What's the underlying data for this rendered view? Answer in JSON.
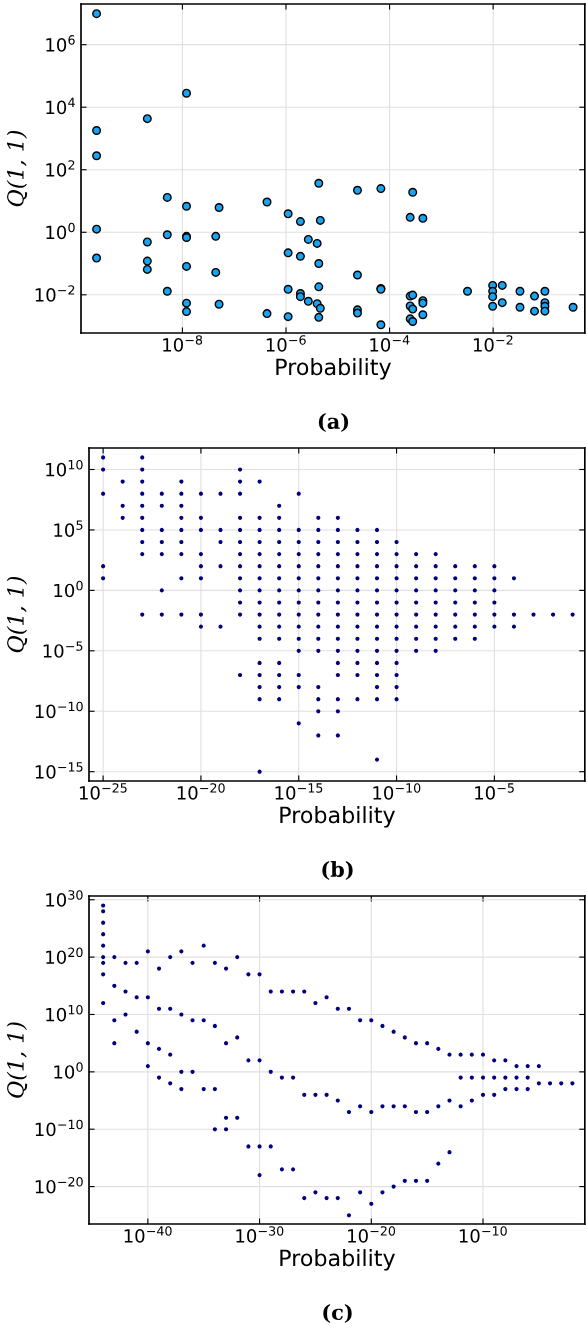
{
  "chart_data": [
    {
      "type": "scatter",
      "xlabel": "Probability",
      "ylabel": "Q(1, 1)",
      "annotations": [
        "(a)"
      ],
      "log": "xy",
      "grid": true,
      "marker": "circle",
      "xlim": [
        1.1e-10,
        0.59
      ],
      "ylim": [
        0.0006,
        20000000.0
      ],
      "xticks": [
        {
          "value": 1e-08,
          "label": "10$^{−8}$"
        },
        {
          "value": 1e-06,
          "label": "10$^{−6}$"
        },
        {
          "value": 0.0001,
          "label": "10$^{−4}$"
        },
        {
          "value": 0.01,
          "label": "10$^{−2}$"
        }
      ],
      "yticks": [
        {
          "value": 0.01,
          "label": "10$^{−2}$"
        },
        {
          "value": 1,
          "label": "10$^{0}$"
        },
        {
          "value": 100,
          "label": "10$^{2}$"
        },
        {
          "value": 10000.0,
          "label": "10$^{4}$"
        },
        {
          "value": 1000000.0,
          "label": "10$^{6}$"
        }
      ],
      "series": [
        {
          "color": "#1aa3f0",
          "x": [
            2.2e-10,
            2.2e-10,
            2.2e-10,
            2.2e-10,
            2.2e-10,
            2.1e-09,
            2.1e-09,
            2.1e-09,
            2.1e-09,
            5.1e-09,
            5.1e-09,
            5.1e-09,
            1.2e-08,
            1.2e-08,
            1.2e-08,
            1.2e-08,
            1.2e-08,
            1.2e-08,
            1.2e-08,
            4.4e-08,
            4.4e-08,
            5.1e-08,
            5.1e-08,
            4.3e-07,
            4.3e-07,
            1.1e-06,
            1.1e-06,
            1.1e-06,
            1.1e-06,
            1.9e-06,
            1.9e-06,
            1.9e-06,
            1.9e-06,
            2.7e-06,
            2.7e-06,
            4e-06,
            4e-06,
            4.3e-06,
            4.3e-06,
            4.3e-06,
            4.3e-06,
            4.6e-06,
            4.6e-06,
            2.4e-05,
            2.4e-05,
            2.4e-05,
            2.4e-05,
            6.8e-05,
            6.8e-05,
            6.8e-05,
            6.8e-05,
            0.00025,
            0.00025,
            0.00025,
            0.00025,
            0.00028,
            0.00028,
            0.00028,
            0.00028,
            0.00044,
            0.00044,
            0.00044,
            0.00044,
            0.0032,
            0.0098,
            0.0098,
            0.0098,
            0.0098,
            0.015,
            0.015,
            0.033,
            0.033,
            0.063,
            0.063,
            0.1,
            0.1,
            0.1,
            0.1,
            0.35
          ],
          "values": [
            9800000.0,
            1800,
            280,
            1.26,
            0.15,
            4300,
            0.49,
            0.12,
            0.065,
            13,
            0.83,
            0.013,
            28000.0,
            6.8,
            0.74,
            0.68,
            0.081,
            0.0054,
            0.0029,
            0.74,
            0.052,
            6.2,
            0.005,
            9.3,
            0.0025,
            3.9,
            0.22,
            0.015,
            0.002,
            2.2,
            0.17,
            0.011,
            0.0087,
            0.59,
            0.0062,
            0.44,
            0.0052,
            37,
            0.1,
            0.018,
            0.0019,
            2.4,
            0.0037,
            22,
            0.043,
            0.0033,
            0.0026,
            25,
            0.016,
            0.015,
            0.0011,
            3.0,
            0.0091,
            0.0044,
            0.0017,
            19,
            0.0098,
            0.0035,
            0.0014,
            2.8,
            0.0065,
            0.0054,
            0.0023,
            0.013,
            0.02,
            0.013,
            0.0087,
            0.0043,
            0.02,
            0.0056,
            0.013,
            0.004,
            0.0091,
            0.003,
            0.013,
            0.0056,
            0.0043,
            0.003,
            0.004
          ]
        }
      ]
    },
    {
      "type": "scatter",
      "xlabel": "Probability",
      "ylabel": "Q(1, 1)",
      "annotations": [
        "(b)"
      ],
      "log": "xy",
      "grid": true,
      "marker": "circle",
      "xlim": [
        1.9e-26,
        0.42
      ],
      "ylim": [
        1.7e-16,
        600000000000.0
      ],
      "xticks": [
        {
          "value": 1e-25,
          "label": "10$^{−25}$"
        },
        {
          "value": 1e-20,
          "label": "10$^{−20}$"
        },
        {
          "value": 1e-15,
          "label": "10$^{−15}$"
        },
        {
          "value": 1e-10,
          "label": "10$^{−10}$"
        },
        {
          "value": 1e-05,
          "label": "10$^{−5}$"
        }
      ],
      "yticks": [
        {
          "value": 1e-15,
          "label": "10$^{−15}$"
        },
        {
          "value": 1e-10,
          "label": "10$^{−10}$"
        },
        {
          "value": 1e-05,
          "label": "10$^{−5}$"
        },
        {
          "value": 1,
          "label": "10$^{0}$"
        },
        {
          "value": 100000.0,
          "label": "10$^{5}$"
        },
        {
          "value": 10000000000.0,
          "label": "10$^{10}$"
        }
      ],
      "series": [
        {
          "color": "#000080",
          "x": [
            1e-25,
            1e-25,
            1e-25,
            1e-25,
            1e-25,
            1e-24,
            1e-24,
            1e-24,
            1e-23,
            1e-23,
            1e-23,
            1e-23,
            1e-23,
            1e-23,
            1e-23,
            1e-23,
            1e-23,
            1e-23,
            1e-22,
            1e-22,
            1e-22,
            1e-22,
            1e-22,
            1e-22,
            1e-22,
            1e-21,
            1e-21,
            1e-21,
            1e-21,
            1e-21,
            1e-21,
            1e-21,
            1e-21,
            1e-21,
            1e-20,
            1e-20,
            1e-20,
            1e-20,
            1e-20,
            1e-20,
            1e-20,
            1e-20,
            1e-19,
            1e-19,
            1e-19,
            1e-19,
            1e-19,
            1e-18,
            1e-18,
            1e-18,
            1e-18,
            1e-18,
            1e-18,
            1e-18,
            1e-18,
            1e-18,
            1e-18,
            1e-18,
            1e-18,
            1e-18,
            1e-17,
            1e-17,
            1e-17,
            1e-17,
            1e-17,
            1e-17,
            1e-17,
            1e-17,
            1e-17,
            1e-17,
            1e-17,
            1e-17,
            1e-17,
            1e-17,
            1e-17,
            1e-17,
            1e-17,
            1e-16,
            1e-16,
            1e-16,
            1e-16,
            1e-16,
            1e-16,
            1e-16,
            1e-16,
            1e-16,
            1e-16,
            1e-16,
            1e-16,
            1e-16,
            1e-16,
            1e-16,
            1e-16,
            1e-15,
            1e-15,
            1e-15,
            1e-15,
            1e-15,
            1e-15,
            1e-15,
            1e-15,
            1e-15,
            1e-15,
            1e-15,
            1e-15,
            1e-15,
            1e-15,
            1e-15,
            1e-14,
            1e-14,
            1e-14,
            1e-14,
            1e-14,
            1e-14,
            1e-14,
            1e-14,
            1e-14,
            1e-14,
            1e-14,
            1e-14,
            1e-14,
            1e-14,
            1e-14,
            1e-14,
            1e-13,
            1e-13,
            1e-13,
            1e-13,
            1e-13,
            1e-13,
            1e-13,
            1e-13,
            1e-13,
            1e-13,
            1e-13,
            1e-13,
            1e-13,
            1e-13,
            1e-13,
            1e-13,
            1e-13,
            1e-12,
            1e-12,
            1e-12,
            1e-12,
            1e-12,
            1e-12,
            1e-12,
            1e-12,
            1e-12,
            1e-12,
            1e-12,
            1e-12,
            1e-12,
            1e-12,
            1e-11,
            1e-11,
            1e-11,
            1e-11,
            1e-11,
            1e-11,
            1e-11,
            1e-11,
            1e-11,
            1e-11,
            1e-11,
            1e-11,
            1e-11,
            1e-11,
            1e-11,
            1e-11,
            1e-10,
            1e-10,
            1e-10,
            1e-10,
            1e-10,
            1e-10,
            1e-10,
            1e-10,
            1e-10,
            1e-10,
            1e-10,
            1e-10,
            1e-10,
            1e-10,
            1e-09,
            1e-09,
            1e-09,
            1e-09,
            1e-09,
            1e-09,
            1e-09,
            1e-09,
            1e-09,
            1e-08,
            1e-08,
            1e-08,
            1e-08,
            1e-08,
            1e-08,
            1e-08,
            1e-08,
            1e-08,
            1e-07,
            1e-07,
            1e-07,
            1e-07,
            1e-07,
            1e-07,
            1e-07,
            1e-06,
            1e-06,
            1e-06,
            1e-06,
            1e-06,
            1e-06,
            1e-06,
            1e-05,
            1e-05,
            1e-05,
            1e-05,
            1e-05,
            1e-05,
            0.0001,
            0.0001,
            0.0001,
            0.001,
            0.01,
            0.1
          ],
          "values": [
            100000000000.0,
            10000000000.0,
            100000000.0,
            100.0,
            10.0,
            1000000000.0,
            10000000.0,
            1000000.0,
            100000000000.0,
            10000000000.0,
            1000000000.0,
            100000000.0,
            10000000.0,
            1000000.0,
            100000.0,
            10000.0,
            1000.0,
            0.01,
            100000000.0,
            10000000.0,
            100000.0,
            10000.0,
            1000.0,
            1.0,
            0.01,
            1000000000.0,
            100000000.0,
            10000000.0,
            1000000.0,
            100000.0,
            10000.0,
            1000.0,
            10.0,
            0.01,
            100000000.0,
            1000000.0,
            100000.0,
            1000.0,
            100.0,
            10.0,
            0.01,
            0.001,
            100000000.0,
            100000.0,
            10000.0,
            100.0,
            0.001,
            10000000000.0,
            1000000000.0,
            100000000.0,
            1000000.0,
            100000.0,
            10000.0,
            1000.0,
            100.0,
            10.0,
            1.0,
            0.1,
            0.01,
            1e-07,
            1000000000.0,
            1000000.0,
            100000.0,
            10000.0,
            1000.0,
            100.0,
            10.0,
            1.0,
            0.1,
            0.01,
            0.001,
            0.0001,
            1e-06,
            1e-07,
            1e-08,
            1e-09,
            1e-15,
            10000000.0,
            1000000.0,
            100000.0,
            10000.0,
            1000.0,
            100.0,
            10.0,
            1.0,
            0.1,
            0.01,
            0.001,
            0.0001,
            1e-06,
            1e-07,
            1e-08,
            1e-09,
            100000000.0,
            100000.0,
            10000.0,
            1000.0,
            100.0,
            10.0,
            1.0,
            0.1,
            0.01,
            0.001,
            0.0001,
            1e-05,
            1e-07,
            1e-08,
            1e-11,
            1000000.0,
            100000.0,
            10000.0,
            1000.0,
            100.0,
            10.0,
            1.0,
            0.1,
            0.01,
            0.001,
            0.0001,
            1e-05,
            1e-08,
            1e-09,
            1e-10,
            1e-12,
            1000000.0,
            100000.0,
            10000.0,
            1000.0,
            100.0,
            10.0,
            1.0,
            0.1,
            0.01,
            0.001,
            0.0001,
            1e-05,
            1e-06,
            1e-07,
            1e-09,
            1e-10,
            1e-12,
            100000.0,
            10000.0,
            1000.0,
            100.0,
            10.0,
            1.0,
            0.1,
            0.01,
            0.001,
            0.0001,
            1e-05,
            1e-06,
            1e-07,
            1e-09,
            100000.0,
            10000.0,
            1000.0,
            100.0,
            10.0,
            1.0,
            0.1,
            0.01,
            0.001,
            0.0001,
            1e-05,
            1e-06,
            1e-07,
            1e-08,
            1e-09,
            1e-14,
            10000.0,
            1000.0,
            100.0,
            10.0,
            1.0,
            0.1,
            0.01,
            0.001,
            0.0001,
            1e-05,
            1e-06,
            1e-07,
            1e-08,
            1e-09,
            1000.0,
            100.0,
            10.0,
            1.0,
            0.1,
            0.01,
            0.001,
            0.0001,
            1e-05,
            1000.0,
            100.0,
            10.0,
            1.0,
            0.1,
            0.01,
            0.001,
            0.0001,
            1e-05,
            100.0,
            10.0,
            1.0,
            0.1,
            0.01,
            0.001,
            0.0001,
            100.0,
            10.0,
            1.0,
            0.1,
            0.01,
            0.001,
            0.0001,
            100.0,
            10.0,
            1.0,
            0.1,
            0.01,
            0.001,
            10.0,
            0.01,
            0.001,
            0.01,
            0.01,
            0.01
          ]
        }
      ]
    },
    {
      "type": "scatter",
      "xlabel": "Probability",
      "ylabel": "Q(1, 1)",
      "annotations": [
        "(c)"
      ],
      "log": "xy",
      "grid": true,
      "marker": "circle",
      "xlim": [
        5.4e-46,
        0.13
      ],
      "ylim": [
        3e-27,
        4.5e+30
      ],
      "xticks": [
        {
          "value": 1e-40,
          "label": "10$^{−40}$"
        },
        {
          "value": 1e-30,
          "label": "10$^{−30}$"
        },
        {
          "value": 1e-20,
          "label": "10$^{−20}$"
        },
        {
          "value": 1e-10,
          "label": "10$^{−10}$"
        }
      ],
      "yticks": [
        {
          "value": 1e-20,
          "label": "10$^{−20}$"
        },
        {
          "value": 1e-10,
          "label": "10$^{−10}$"
        },
        {
          "value": 1,
          "label": "10$^{0}$"
        },
        {
          "value": 10000000000.0,
          "label": "10$^{10}$"
        },
        {
          "value": 1e+20,
          "label": "10$^{20}$"
        },
        {
          "value": 1e+30,
          "label": "10$^{30}$"
        }
      ],
      "series": [
        {
          "color": "#000080",
          "x": [
            1e-44,
            1e-44,
            1e-44,
            1e-44,
            1e-44,
            1e-44,
            1e-44,
            1e-44,
            1e-44,
            1e-43,
            1e-43,
            1e-43,
            1e-43,
            1e-42,
            1e-42,
            1e-42,
            1e-41,
            1e-41,
            1e-41,
            1e-40,
            1e-40,
            1e-40,
            1e-40,
            1e-39,
            1e-39,
            1e-39,
            1e-39,
            1e-38,
            1e-38,
            1e-38,
            1e-38,
            1e-37,
            1e-37,
            1e-37,
            1e-37,
            1e-36,
            1e-36,
            1e-36,
            1e-35,
            1e-35,
            1e-35,
            1e-34,
            1e-34,
            1e-34,
            1e-34,
            1e-33,
            1e-33,
            1e-33,
            1e-33,
            1e-32,
            1e-32,
            1e-32,
            1e-31,
            1e-31,
            1e-31,
            1e-30,
            1e-30,
            1e-30,
            1e-30,
            1e-29,
            1e-29,
            1e-29,
            1e-28,
            1e-28,
            1e-28,
            1e-27,
            1e-27,
            1e-27,
            1e-26,
            1e-26,
            1e-26,
            1e-25,
            1e-25,
            1e-25,
            1e-24,
            1e-24,
            1e-24,
            1e-23,
            1e-23,
            1e-23,
            1e-22,
            1e-22,
            1e-22,
            1e-21,
            1e-21,
            1e-21,
            1e-20,
            1e-20,
            1e-20,
            1e-19,
            1e-19,
            1e-19,
            1e-18,
            1e-18,
            1e-18,
            1e-17,
            1e-17,
            1e-17,
            1e-16,
            1e-16,
            1e-16,
            1e-15,
            1e-15,
            1e-15,
            1e-14,
            1e-14,
            1e-14,
            1e-13,
            1e-13,
            1e-13,
            1e-12,
            1e-12,
            1e-12,
            1e-11,
            1e-11,
            1e-11,
            1e-10,
            1e-10,
            1e-10,
            1e-09,
            1e-09,
            1e-09,
            1e-08,
            1e-08,
            1e-08,
            1e-07,
            1e-07,
            1e-07,
            1e-06,
            1e-06,
            1e-06,
            1e-05,
            1e-05,
            0.0001,
            0.001,
            0.01
          ],
          "values": [
            1e+29,
            1e+28,
            1e+26,
            1e+24,
            1e+22,
            1e+20,
            1e+19,
            1e+17,
            1000000000000.0,
            1e+20,
            1000000000000000.0,
            1000000000.0,
            100000.0,
            1e+19,
            100000000000000.0,
            10000000000.0,
            1e+19,
            10000000000000.0,
            10000000.0,
            1e+21,
            10000000000000.0,
            100000.0,
            10.0,
            1e+18,
            100000000000.0,
            10000.0,
            0.1,
            1e+20,
            100000000000.0,
            1000.0,
            0.01,
            1e+21,
            10000000000.0,
            1.0,
            0.001,
            1e+19,
            1000000000.0,
            1.0,
            1e+22,
            1000000000.0,
            0.001,
            1e+19,
            100000000.0,
            0.001,
            1e-10,
            1e+18,
            100000.0,
            1e-08,
            1e-10,
            1e+20,
            1000000.0,
            1e-08,
            1e+17,
            100.0,
            1e-13,
            1e+17,
            100.0,
            1e-13,
            1e-18,
            100000000000000.0,
            1.0,
            1e-13,
            100000000000000.0,
            0.1,
            1e-17,
            100000000000000.0,
            0.1,
            1e-17,
            100000000000000.0,
            0.0001,
            1e-22,
            1000000000000.0,
            0.0001,
            1e-21,
            10000000000000.0,
            0.0001,
            1e-22,
            100000000000.0,
            1e-05,
            1e-22,
            100000000000.0,
            1e-07,
            1e-25,
            1000000000.0,
            1e-06,
            1e-21,
            1000000000.0,
            1e-07,
            1e-23,
            100000000.0,
            1e-06,
            1e-21,
            10000000.0,
            1e-06,
            1e-20,
            1000000.0,
            1e-06,
            1e-19,
            100000.0,
            1e-07,
            1e-19,
            100000.0,
            1e-07,
            1e-19,
            10000.0,
            1e-06,
            1e-16,
            1000.0,
            1e-05,
            1e-14,
            1000.0,
            0.1,
            1e-06,
            1000.0,
            0.1,
            1e-05,
            1000.0,
            0.1,
            0.0001,
            100.0,
            0.1,
            0.0001,
            100.0,
            0.1,
            0.001,
            10.0,
            0.1,
            0.001,
            10.0,
            0.1,
            0.001,
            10.0,
            0.01,
            0.01,
            0.01,
            0.01
          ]
        }
      ]
    }
  ]
}
